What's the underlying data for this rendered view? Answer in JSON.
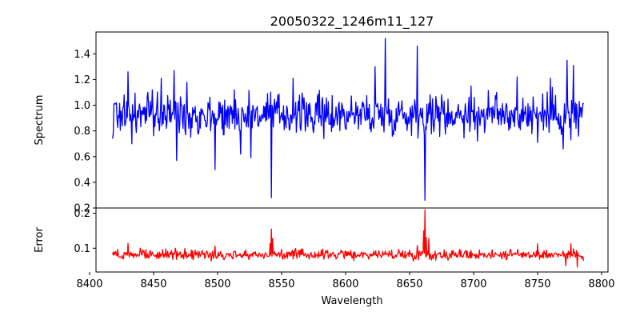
{
  "chart_data": {
    "type": "line",
    "title": "20050322_1246m11_127",
    "xlabel": "Wavelength",
    "xlim": [
      8405,
      8805
    ],
    "xticks": [
      8400,
      8450,
      8500,
      8550,
      8600,
      8650,
      8700,
      8750,
      8800
    ],
    "grid": false,
    "panels": [
      {
        "id": "spectrum",
        "ylabel": "Spectrum",
        "ylim": [
          0.2,
          1.57
        ],
        "yticks": [
          0.2,
          0.4,
          0.6,
          0.8,
          1.0,
          1.2,
          1.4
        ],
        "ytick_labels": [
          "0.2",
          "0.4",
          "0.6",
          "0.8",
          "1.0",
          "1.2",
          "1.4"
        ],
        "color": "#0000ff",
        "x_range": [
          8418,
          8786
        ],
        "base": 0.93,
        "noise": 0.09,
        "features": [
          {
            "x": 8418,
            "y": 0.74
          },
          {
            "x": 8420,
            "y": 1.01
          },
          {
            "x": 8427,
            "y": 1.08
          },
          {
            "x": 8430,
            "y": 1.26
          },
          {
            "x": 8433,
            "y": 0.7
          },
          {
            "x": 8449,
            "y": 1.12
          },
          {
            "x": 8456,
            "y": 1.21
          },
          {
            "x": 8466,
            "y": 1.27
          },
          {
            "x": 8468,
            "y": 0.57
          },
          {
            "x": 8476,
            "y": 1.18
          },
          {
            "x": 8498,
            "y": 0.5
          },
          {
            "x": 8509,
            "y": 0.82
          },
          {
            "x": 8513,
            "y": 1.12
          },
          {
            "x": 8518,
            "y": 0.62
          },
          {
            "x": 8526,
            "y": 0.59
          },
          {
            "x": 8542,
            "y": 0.28
          },
          {
            "x": 8559,
            "y": 1.21
          },
          {
            "x": 8583,
            "y": 0.74
          },
          {
            "x": 8623,
            "y": 1.3
          },
          {
            "x": 8631,
            "y": 1.52
          },
          {
            "x": 8634,
            "y": 0.84
          },
          {
            "x": 8656,
            "y": 1.46
          },
          {
            "x": 8662,
            "y": 0.26
          },
          {
            "x": 8698,
            "y": 1.15
          },
          {
            "x": 8703,
            "y": 0.72
          },
          {
            "x": 8718,
            "y": 1.1
          },
          {
            "x": 8734,
            "y": 1.22
          },
          {
            "x": 8750,
            "y": 0.71
          },
          {
            "x": 8760,
            "y": 1.21
          },
          {
            "x": 8770,
            "y": 0.66
          },
          {
            "x": 8773,
            "y": 1.35
          },
          {
            "x": 8776,
            "y": 0.73
          },
          {
            "x": 8778,
            "y": 1.31
          },
          {
            "x": 8782,
            "y": 0.76
          },
          {
            "x": 8786,
            "y": 1.01
          }
        ]
      },
      {
        "id": "error",
        "ylabel": "Error",
        "ylim": [
          0.032,
          0.215
        ],
        "yticks": [
          0.1,
          0.2
        ],
        "ytick_labels": [
          "0.1",
          "0.2"
        ],
        "color": "#ff0000",
        "x_range": [
          8418,
          8786
        ],
        "base": 0.082,
        "noise": 0.008,
        "features": [
          {
            "x": 8418,
            "y": 0.088
          },
          {
            "x": 8430,
            "y": 0.114
          },
          {
            "x": 8468,
            "y": 0.068
          },
          {
            "x": 8498,
            "y": 0.106
          },
          {
            "x": 8541,
            "y": 0.113
          },
          {
            "x": 8542,
            "y": 0.155
          },
          {
            "x": 8543,
            "y": 0.128
          },
          {
            "x": 8656,
            "y": 0.108
          },
          {
            "x": 8661,
            "y": 0.15
          },
          {
            "x": 8662,
            "y": 0.21
          },
          {
            "x": 8663,
            "y": 0.13
          },
          {
            "x": 8665,
            "y": 0.128
          },
          {
            "x": 8667,
            "y": 0.066
          },
          {
            "x": 8750,
            "y": 0.113
          },
          {
            "x": 8772,
            "y": 0.05
          },
          {
            "x": 8776,
            "y": 0.113
          },
          {
            "x": 8781,
            "y": 0.046
          },
          {
            "x": 8786,
            "y": 0.064
          }
        ]
      }
    ]
  }
}
